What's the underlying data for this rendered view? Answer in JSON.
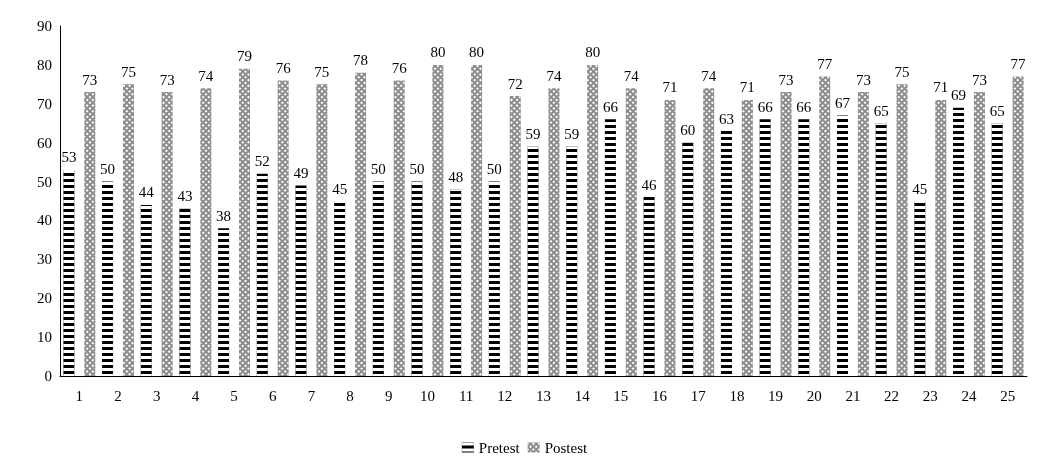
{
  "chart_data": {
    "type": "bar",
    "x": [
      1,
      2,
      3,
      4,
      5,
      6,
      7,
      8,
      9,
      10,
      11,
      12,
      13,
      14,
      15,
      16,
      17,
      18,
      19,
      20,
      21,
      22,
      23,
      24,
      25
    ],
    "series": [
      {
        "name": "Pretest",
        "color": "#000000",
        "values": [
          53,
          50,
          44,
          43,
          38,
          52,
          49,
          45,
          50,
          50,
          48,
          50,
          59,
          59,
          66,
          46,
          60,
          63,
          66,
          66,
          67,
          65,
          45,
          69,
          65
        ]
      },
      {
        "name": "Postest",
        "color": "#8c8c8c",
        "values": [
          73,
          75,
          73,
          74,
          79,
          76,
          75,
          78,
          76,
          80,
          80,
          72,
          74,
          80,
          74,
          71,
          74,
          71,
          73,
          77,
          73,
          75,
          71,
          73,
          77
        ]
      }
    ],
    "xlim": [
      0.5,
      25.5
    ],
    "xticks": [
      1,
      2,
      3,
      4,
      5,
      6,
      7,
      8,
      9,
      10,
      11,
      12,
      13,
      14,
      15,
      16,
      17,
      18,
      19,
      20,
      21,
      22,
      23,
      24,
      25
    ],
    "ylim": [
      0,
      90
    ],
    "yticks": [
      0,
      10,
      20,
      30,
      40,
      50,
      60,
      70,
      80,
      90
    ],
    "grid": false,
    "legend": "bottom",
    "data_labels": true
  }
}
